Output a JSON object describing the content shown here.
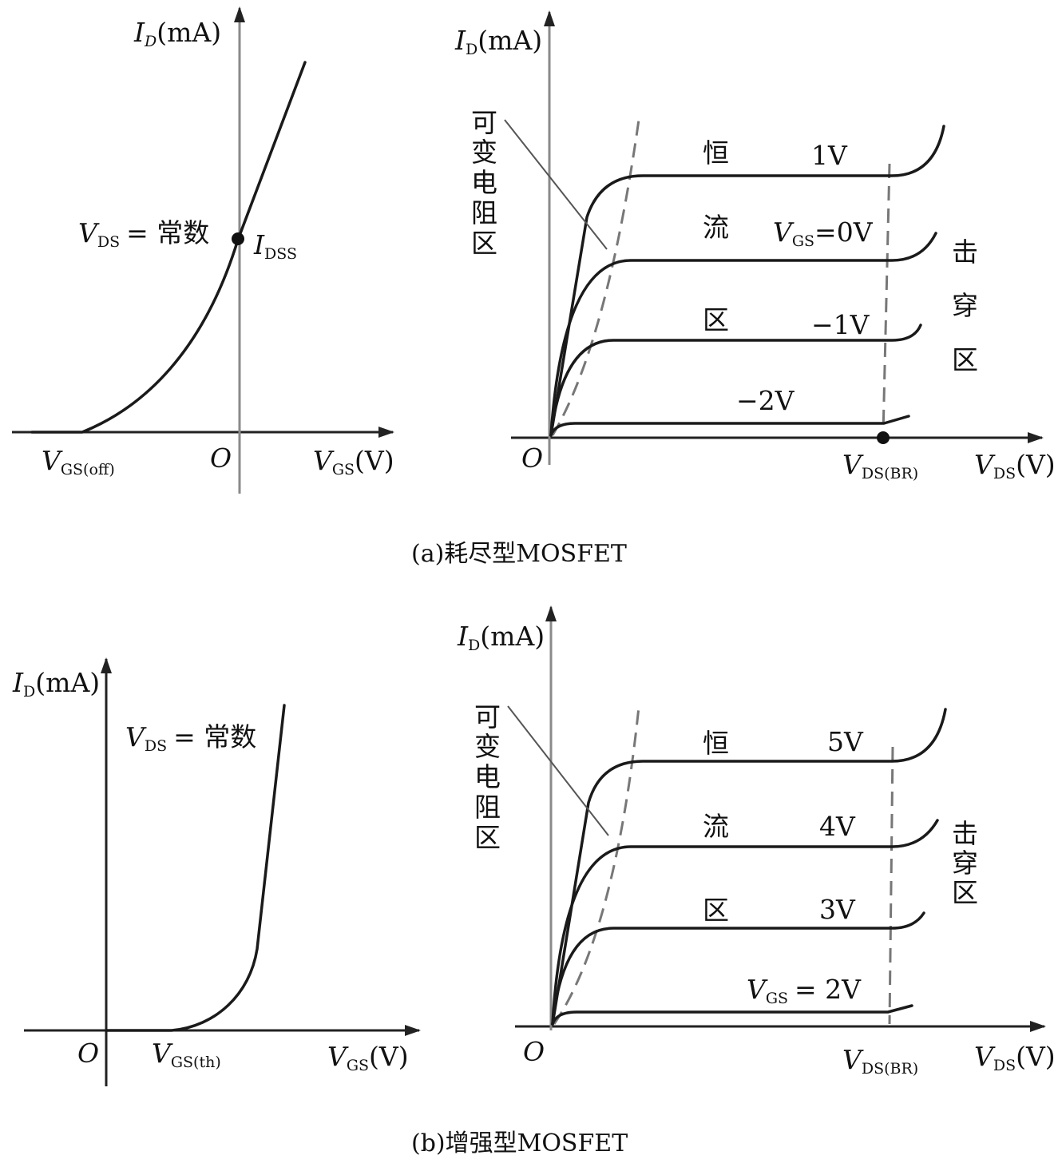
{
  "panel_a": {
    "caption": "(a)耗尽型MOSFET",
    "transfer": {
      "y_label_main": "I",
      "y_label_sub": "D",
      "y_label_unit": "(mA)",
      "x_label_main": "V",
      "x_label_sub": "GS",
      "x_label_unit": "(V)",
      "origin": "O",
      "cutoff_main": "V",
      "cutoff_sub": "GS(off)",
      "condition_main": "V",
      "condition_sub": "DS",
      "condition_text": "= 常数",
      "point_main": "I",
      "point_sub": "DSS"
    },
    "output": {
      "y_label_main": "I",
      "y_label_sub": "D",
      "y_label_unit": "(mA)",
      "x_label_main": "V",
      "x_label_sub": "DS",
      "x_label_unit": "(V)",
      "origin": "O",
      "breakdown_main": "V",
      "breakdown_sub": "DS(BR)",
      "region_variable": [
        "可",
        "变",
        "电",
        "阻",
        "区"
      ],
      "region_constant": [
        "恒",
        "流",
        "区"
      ],
      "region_breakdown": [
        "击",
        "穿",
        "区"
      ],
      "curve_1v": "1V",
      "curve_0v_main": "V",
      "curve_0v_sub": "GS",
      "curve_0v_text": "=0V",
      "curve_m1v": "−1V",
      "curve_m2v": "−2V"
    }
  },
  "panel_b": {
    "caption": "(b)增强型MOSFET",
    "transfer": {
      "y_label_main": "I",
      "y_label_sub": "D",
      "y_label_unit": "(mA)",
      "x_label_main": "V",
      "x_label_sub": "GS",
      "x_label_unit": "(V)",
      "origin": "O",
      "threshold_main": "V",
      "threshold_sub": "GS(th)",
      "condition_main": "V",
      "condition_sub": "DS",
      "condition_text": "= 常数"
    },
    "output": {
      "y_label_main": "I",
      "y_label_sub": "D",
      "y_label_unit": "(mA)",
      "x_label_main": "V",
      "x_label_sub": "DS",
      "x_label_unit": "(V)",
      "origin": "O",
      "breakdown_main": "V",
      "breakdown_sub": "DS(BR)",
      "region_variable": [
        "可",
        "变",
        "电",
        "阻",
        "区"
      ],
      "region_constant": [
        "恒",
        "流",
        "区"
      ],
      "region_breakdown": [
        "击",
        "穿",
        "区"
      ],
      "curve_5v": "5V",
      "curve_4v": "4V",
      "curve_3v": "3V",
      "curve_2v_main": "V",
      "curve_2v_sub": "GS",
      "curve_2v_text": "= 2V"
    }
  }
}
